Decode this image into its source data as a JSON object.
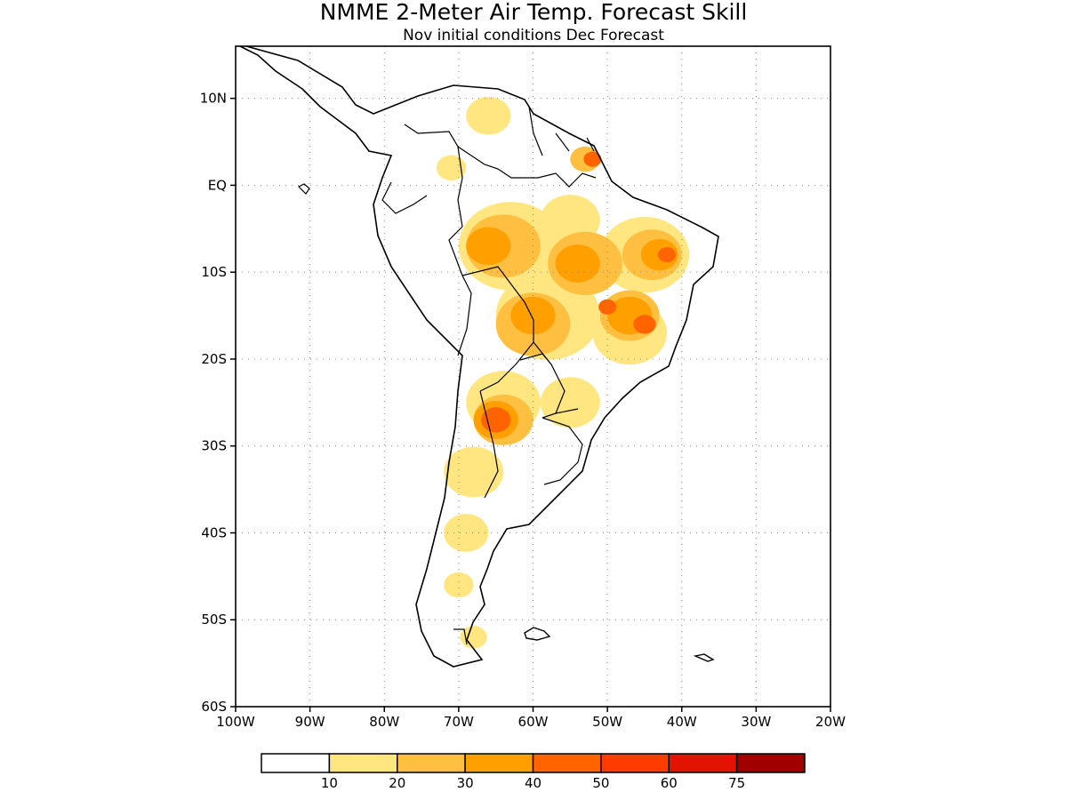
{
  "title": "NMME 2-Meter Air Temp. Forecast Skill",
  "subtitle": "Nov initial conditions  Dec Forecast",
  "map": {
    "region": "South America",
    "projection": "equirectangular",
    "lon_range": [
      -100,
      -20
    ],
    "lat_range": [
      -60,
      16
    ],
    "grid": true,
    "grid_style": "dotted",
    "lat_ticks": [
      {
        "value": 10,
        "label": "10N"
      },
      {
        "value": 0,
        "label": "EQ"
      },
      {
        "value": -10,
        "label": "10S"
      },
      {
        "value": -20,
        "label": "20S"
      },
      {
        "value": -30,
        "label": "30S"
      },
      {
        "value": -40,
        "label": "40S"
      },
      {
        "value": -50,
        "label": "50S"
      },
      {
        "value": -60,
        "label": "60S"
      }
    ],
    "lon_ticks": [
      {
        "value": -100,
        "label": "100W"
      },
      {
        "value": -90,
        "label": "90W"
      },
      {
        "value": -80,
        "label": "80W"
      },
      {
        "value": -70,
        "label": "70W"
      },
      {
        "value": -60,
        "label": "60W"
      },
      {
        "value": -50,
        "label": "50W"
      },
      {
        "value": -40,
        "label": "40W"
      },
      {
        "value": -30,
        "label": "30W"
      },
      {
        "value": -20,
        "label": "20W"
      }
    ]
  },
  "legend": {
    "colors": [
      "#ffffff",
      "#ffe680",
      "#ffbf40",
      "#ffa000",
      "#ff6400",
      "#ff3c00",
      "#e01400",
      "#a00000"
    ],
    "labels": [
      "10",
      "20",
      "30",
      "40",
      "50",
      "60",
      "75"
    ]
  },
  "skill_regions": [
    {
      "level": 1,
      "lon": -66,
      "lat": 8,
      "r": 3
    },
    {
      "level": 1,
      "lon": -71,
      "lat": 2,
      "r": 2
    },
    {
      "level": 1,
      "lon": -63,
      "lat": -7,
      "r": 7
    },
    {
      "level": 1,
      "lon": -55,
      "lat": -4,
      "r": 4
    },
    {
      "level": 1,
      "lon": -45,
      "lat": -8,
      "r": 6
    },
    {
      "level": 1,
      "lon": -58,
      "lat": -15,
      "r": 7
    },
    {
      "level": 1,
      "lon": -47,
      "lat": -17,
      "r": 5
    },
    {
      "level": 1,
      "lon": -64,
      "lat": -25,
      "r": 5
    },
    {
      "level": 1,
      "lon": -55,
      "lat": -25,
      "r": 4
    },
    {
      "level": 1,
      "lon": -68,
      "lat": -33,
      "r": 4
    },
    {
      "level": 1,
      "lon": -69,
      "lat": -40,
      "r": 3
    },
    {
      "level": 1,
      "lon": -70,
      "lat": -46,
      "r": 2
    },
    {
      "level": 1,
      "lon": -68,
      "lat": -52,
      "r": 1.8
    },
    {
      "level": 2,
      "lon": -64,
      "lat": -7,
      "r": 5
    },
    {
      "level": 2,
      "lon": -53,
      "lat": -9,
      "r": 5
    },
    {
      "level": 2,
      "lon": -44,
      "lat": -8,
      "r": 4
    },
    {
      "level": 2,
      "lon": -60,
      "lat": -16,
      "r": 5
    },
    {
      "level": 2,
      "lon": -47,
      "lat": -15,
      "r": 4
    },
    {
      "level": 2,
      "lon": -64,
      "lat": -27,
      "r": 4
    },
    {
      "level": 2,
      "lon": -53,
      "lat": 3,
      "r": 2
    },
    {
      "level": 3,
      "lon": -66,
      "lat": -7,
      "r": 3
    },
    {
      "level": 3,
      "lon": -54,
      "lat": -9,
      "r": 3
    },
    {
      "level": 3,
      "lon": -43,
      "lat": -8,
      "r": 2.5
    },
    {
      "level": 3,
      "lon": -60,
      "lat": -15,
      "r": 3
    },
    {
      "level": 3,
      "lon": -47,
      "lat": -15,
      "r": 3
    },
    {
      "level": 3,
      "lon": -65,
      "lat": -27,
      "r": 3
    },
    {
      "level": 4,
      "lon": -65,
      "lat": -27,
      "r": 2
    },
    {
      "level": 4,
      "lon": -45,
      "lat": -16,
      "r": 1.5
    },
    {
      "level": 4,
      "lon": -52,
      "lat": 3,
      "r": 1.2
    },
    {
      "level": 4,
      "lon": -50,
      "lat": -14,
      "r": 1.2
    },
    {
      "level": 4,
      "lon": -42,
      "lat": -8,
      "r": 1.2
    }
  ]
}
